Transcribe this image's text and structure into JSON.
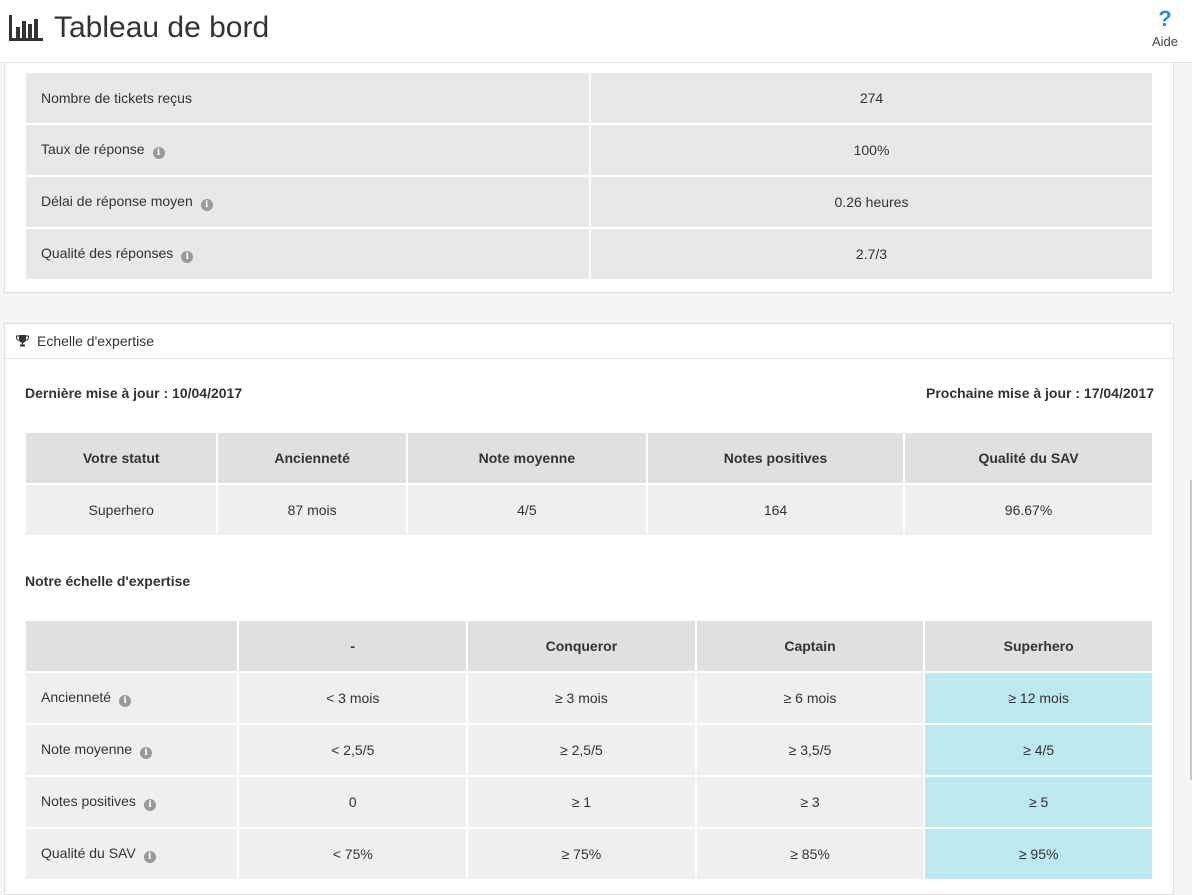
{
  "header": {
    "title": "Tableau de bord",
    "help_label": "Aide",
    "help_icon": "?"
  },
  "stats": [
    {
      "label": "Nombre de tickets reçus",
      "value": "274",
      "info": false
    },
    {
      "label": "Taux de réponse",
      "value": "100%",
      "info": true
    },
    {
      "label": "Délai de réponse moyen",
      "value": "0.26 heures",
      "info": true
    },
    {
      "label": "Qualité des réponses",
      "value": "2.7/3",
      "info": true
    }
  ],
  "expertise": {
    "heading": "Echelle d'expertise",
    "last_update": "Dernière mise à jour : 10/04/2017",
    "next_update": "Prochaine mise à jour : 17/04/2017",
    "status_headers": [
      "Votre statut",
      "Ancienneté",
      "Note moyenne",
      "Notes positives",
      "Qualité du SAV"
    ],
    "status_values": [
      "Superhero",
      "87 mois",
      "4/5",
      "164",
      "96.67%"
    ],
    "scale_title": "Notre échelle d'expertise",
    "scale_headers": [
      "",
      "-",
      "Conqueror",
      "Captain",
      "Superhero"
    ],
    "scale_rows": [
      {
        "label": "Ancienneté",
        "values": [
          "< 3 mois",
          "≥ 3 mois",
          "≥ 6 mois",
          "≥ 12 mois"
        ]
      },
      {
        "label": "Note moyenne",
        "values": [
          "< 2,5/5",
          "≥ 2,5/5",
          "≥ 3,5/5",
          "≥ 4/5"
        ]
      },
      {
        "label": "Notes positives",
        "values": [
          "0",
          "≥ 1",
          "≥ 3",
          "≥ 5"
        ]
      },
      {
        "label": "Qualité du SAV",
        "values": [
          "< 75%",
          "≥ 75%",
          "≥ 85%",
          "≥ 95%"
        ]
      }
    ]
  },
  "icons": {
    "info": "info-circle-icon",
    "trophy": "trophy-icon",
    "chart": "bar-chart-icon"
  },
  "colors": {
    "highlight": "#bde8ef",
    "help_accent": "#2a8fd0",
    "cell_bg": "#e8e8e8"
  }
}
